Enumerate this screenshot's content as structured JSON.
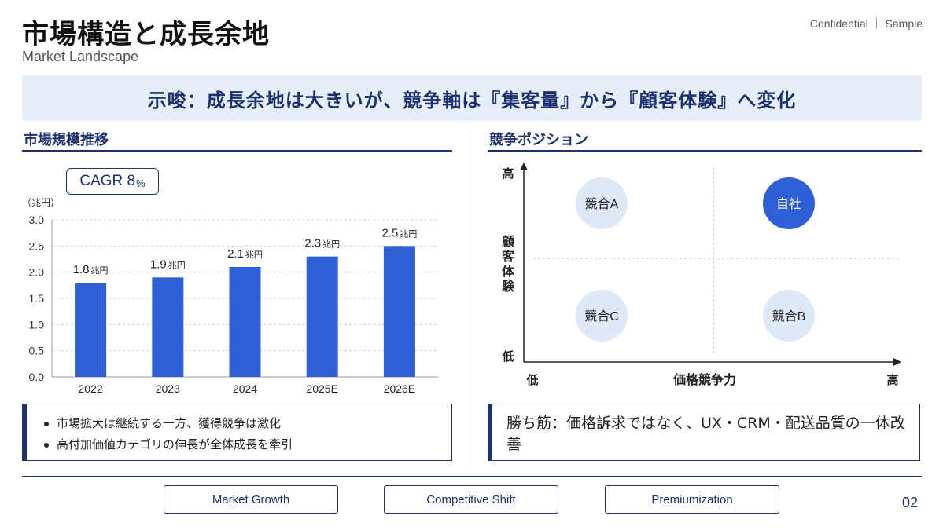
{
  "header": {
    "title": "市場構造と成長余地",
    "subtitle": "Market Landscape",
    "confidential": "Confidential ｜ Sample"
  },
  "insight": "示唆：成長余地は大きいが、競争軸は『集客量』から『顧客体験』へ変化",
  "left_section": {
    "heading": "市場規模推移",
    "cagr_label": "CAGR 8",
    "cagr_unit": "%",
    "notes": [
      "市場拡大は継続する一方、獲得競争は激化",
      "高付加価値カテゴリの伸長が全体成長を牽引"
    ]
  },
  "right_section": {
    "heading": "競争ポジション",
    "winning_strategy": "勝ち筋：価格訴求ではなく、UX・CRM・配送品質の一体改善"
  },
  "footer": {
    "tags": [
      "Market Growth",
      "Competitive Shift",
      "Premiumization"
    ],
    "page_number": "02"
  },
  "colors": {
    "primary": "#1d3170",
    "bar": "#2f5fd6",
    "insight_bg": "#e6eefa",
    "bubble_light": "#dfe8f8",
    "bubble_self": "#2f5fd6"
  },
  "chart_data": [
    {
      "type": "bar",
      "ylabel": "（兆円）",
      "ylim": [
        0,
        3.0
      ],
      "yticks": [
        0.0,
        0.5,
        1.0,
        1.5,
        2.0,
        2.5,
        3.0
      ],
      "ytick_labels": [
        "0.0",
        "0.5",
        "1.0",
        "1.5",
        "2.0",
        "2.5",
        "3.0"
      ],
      "categories": [
        "2022",
        "2023",
        "2024",
        "2025E",
        "2026E"
      ],
      "values": [
        1.8,
        1.9,
        2.1,
        2.3,
        2.5
      ],
      "value_labels": [
        "1.8",
        "1.9",
        "2.1",
        "2.3",
        "2.5"
      ],
      "value_unit": "兆円",
      "grid": true
    },
    {
      "type": "scatter",
      "xlabel": "価格競争力",
      "ylabel": "顧客体験",
      "x_low": "低",
      "x_high": "高",
      "y_low": "低",
      "y_high": "高",
      "points": [
        {
          "label": "競合A",
          "x": 0.25,
          "y": 0.75,
          "highlight": false
        },
        {
          "label": "自社",
          "x": 0.75,
          "y": 0.75,
          "highlight": true
        },
        {
          "label": "競合C",
          "x": 0.25,
          "y": 0.25,
          "highlight": false
        },
        {
          "label": "競合B",
          "x": 0.75,
          "y": 0.25,
          "highlight": false
        }
      ]
    }
  ]
}
